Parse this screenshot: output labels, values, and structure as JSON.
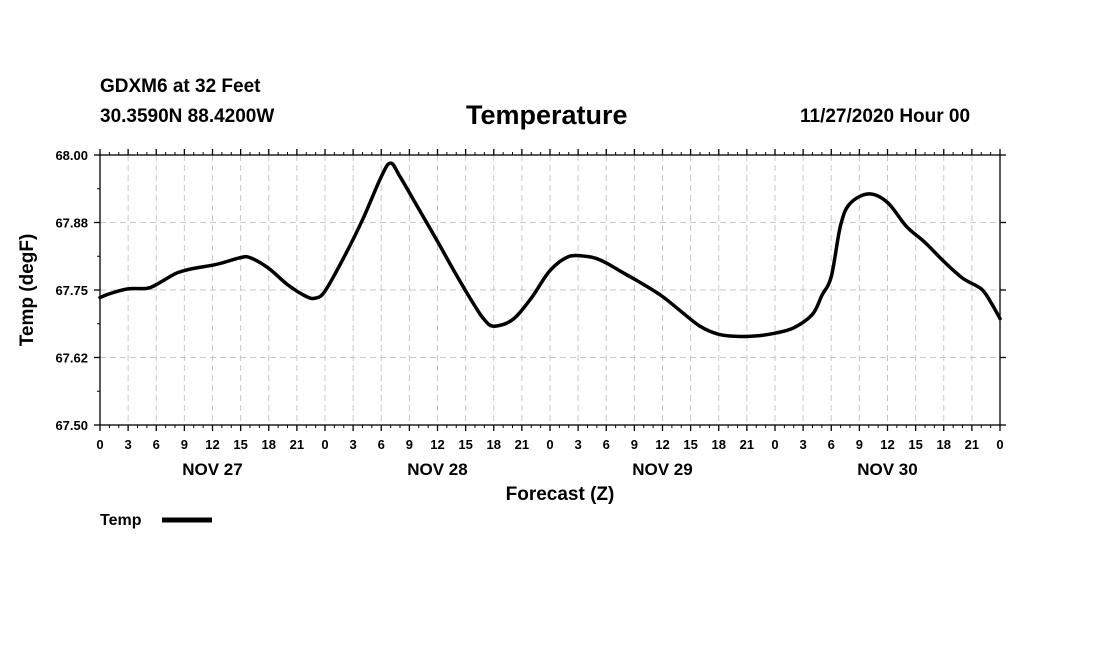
{
  "header": {
    "station": "GDXM6 at 32 Feet",
    "coords": "30.3590N 88.4200W",
    "title": "Temperature",
    "timestamp": "11/27/2020 Hour 00"
  },
  "chart_data": {
    "type": "line",
    "title": "Temperature",
    "xlabel": "Forecast (Z)",
    "ylabel": "Temp (degF)",
    "ylim": [
      67.5,
      68.0
    ],
    "yticks": [
      "67.50",
      "67.62",
      "67.75",
      "67.88",
      "68.00"
    ],
    "ytick_values": [
      67.5,
      67.625,
      67.75,
      67.875,
      68.0
    ],
    "xlim": [
      0,
      96
    ],
    "x_tick_hours": [
      0,
      3,
      6,
      9,
      12,
      15,
      18,
      21,
      24,
      27,
      30,
      33,
      36,
      39,
      42,
      45,
      48,
      51,
      54,
      57,
      60,
      63,
      66,
      69,
      72,
      75,
      78,
      81,
      84,
      87,
      90,
      93,
      96
    ],
    "x_tick_labels": [
      "0",
      "3",
      "6",
      "9",
      "12",
      "15",
      "18",
      "21",
      "0",
      "3",
      "6",
      "9",
      "12",
      "15",
      "18",
      "21",
      "0",
      "3",
      "6",
      "9",
      "12",
      "15",
      "18",
      "21",
      "0",
      "3",
      "6",
      "9",
      "12",
      "15",
      "18",
      "21",
      "0"
    ],
    "day_labels": [
      {
        "label": "NOV 27",
        "hour": 12
      },
      {
        "label": "NOV 28",
        "hour": 36
      },
      {
        "label": "NOV 29",
        "hour": 60
      },
      {
        "label": "NOV 30",
        "hour": 84
      }
    ],
    "grid": true,
    "series": [
      {
        "name": "Temp",
        "x": [
          0,
          1,
          3,
          5,
          6,
          8,
          9,
          10,
          12,
          13,
          15,
          16,
          18,
          20,
          22,
          23,
          24,
          26,
          28,
          30,
          31,
          32,
          34,
          36,
          38,
          40,
          41,
          42,
          44,
          46,
          48,
          50,
          52,
          53,
          54,
          56,
          58,
          60,
          62,
          64,
          66,
          68,
          70,
          72,
          74,
          76,
          77,
          78,
          79,
          80,
          82,
          84,
          86,
          88,
          90,
          92,
          94,
          95,
          96
        ],
        "y": [
          67.736,
          67.743,
          67.752,
          67.753,
          67.76,
          67.78,
          67.786,
          67.79,
          67.796,
          67.8,
          67.81,
          67.81,
          67.79,
          67.76,
          67.738,
          67.735,
          67.748,
          67.81,
          67.88,
          67.96,
          67.985,
          67.96,
          67.9,
          67.84,
          67.778,
          67.72,
          67.695,
          67.683,
          67.695,
          67.735,
          67.786,
          67.812,
          67.812,
          67.808,
          67.8,
          67.78,
          67.76,
          67.738,
          67.71,
          67.683,
          67.668,
          67.664,
          67.665,
          67.67,
          67.68,
          67.705,
          67.74,
          67.775,
          67.87,
          67.91,
          67.928,
          67.912,
          67.868,
          67.838,
          67.803,
          67.772,
          67.752,
          67.728,
          67.697
        ]
      }
    ],
    "legend": {
      "label": "Temp",
      "placement": "bottom-left"
    }
  }
}
